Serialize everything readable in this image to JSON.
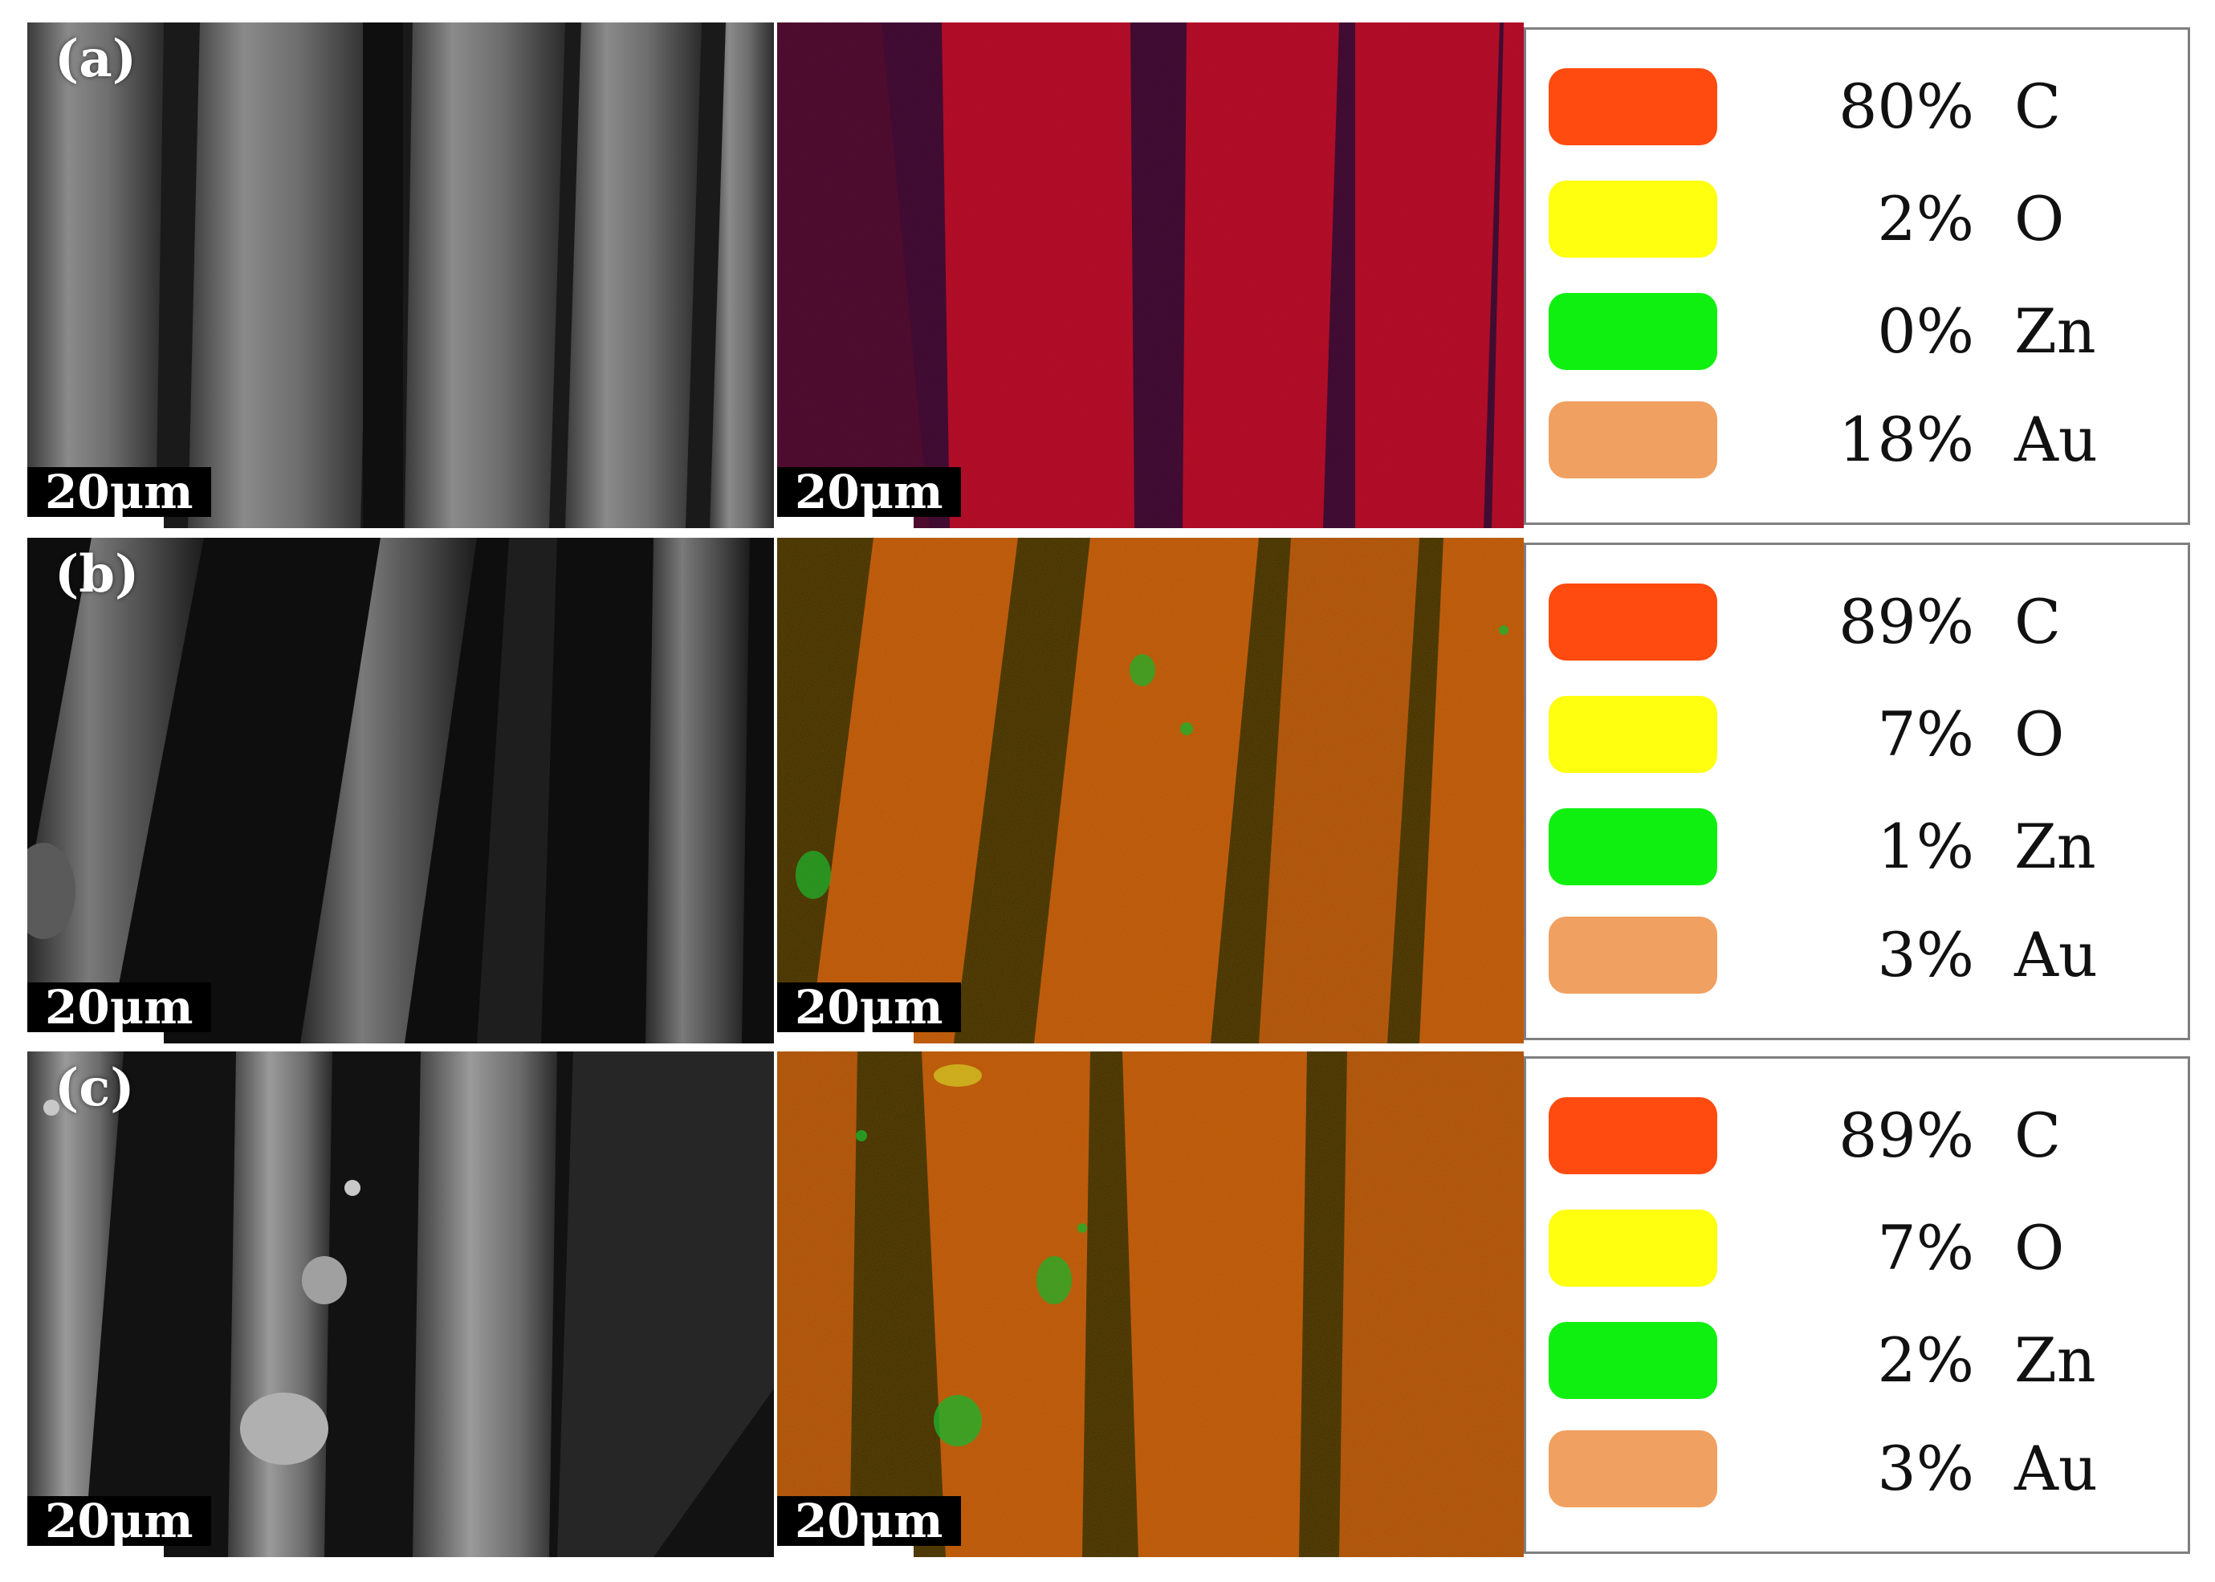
{
  "colors": {
    "C": "#ff4a10",
    "O": "#ffff10",
    "Zn": "#10f010",
    "Au": "#f0a060"
  },
  "scale_label": "20μm",
  "rows": [
    {
      "label": "(a)",
      "legend": [
        {
          "pct": "80%",
          "element": "C"
        },
        {
          "pct": "2%",
          "element": "O"
        },
        {
          "pct": "0%",
          "element": "Zn"
        },
        {
          "pct": "18%",
          "element": "Au"
        }
      ]
    },
    {
      "label": "(b)",
      "legend": [
        {
          "pct": "89%",
          "element": "C"
        },
        {
          "pct": "7%",
          "element": "O"
        },
        {
          "pct": "1%",
          "element": "Zn"
        },
        {
          "pct": "3%",
          "element": "Au"
        }
      ]
    },
    {
      "label": "(c)",
      "legend": [
        {
          "pct": "89%",
          "element": "C"
        },
        {
          "pct": "7%",
          "element": "O"
        },
        {
          "pct": "2%",
          "element": "Zn"
        },
        {
          "pct": "3%",
          "element": "Au"
        }
      ]
    }
  ]
}
